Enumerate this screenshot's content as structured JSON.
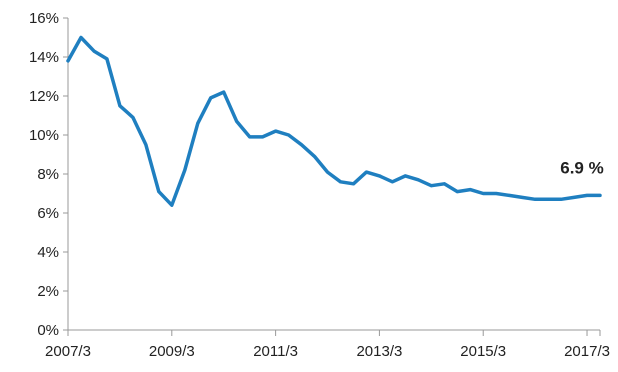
{
  "chart_data": {
    "type": "line",
    "title": "",
    "xlabel": "",
    "ylabel": "",
    "ylim": [
      0,
      16
    ],
    "y_ticks": [
      "0%",
      "2%",
      "4%",
      "6%",
      "8%",
      "10%",
      "12%",
      "14%",
      "16%"
    ],
    "x_ticks": [
      {
        "label": "2007/3",
        "x": 2007.25
      },
      {
        "label": "2009/3",
        "x": 2009.25
      },
      {
        "label": "2011/3",
        "x": 2011.25
      },
      {
        "label": "2013/3",
        "x": 2013.25
      },
      {
        "label": "2015/3",
        "x": 2015.25
      },
      {
        "label": "2017/3",
        "x": 2017.25
      }
    ],
    "xlim": [
      2007.25,
      2017.5
    ],
    "grid": false,
    "legend": "none",
    "line_color": "#1f7fc0",
    "annotation": {
      "text": "6.9 %",
      "x": 2017.5,
      "y": 6.9
    },
    "series": [
      {
        "x": [
          2007.25,
          2007.5,
          2007.75,
          2008.0,
          2008.25,
          2008.5,
          2008.75,
          2009.0,
          2009.25,
          2009.5,
          2009.75,
          2010.0,
          2010.25,
          2010.5,
          2010.75,
          2011.0,
          2011.25,
          2011.5,
          2011.75,
          2012.0,
          2012.25,
          2012.5,
          2012.75,
          2013.0,
          2013.25,
          2013.5,
          2013.75,
          2014.0,
          2014.25,
          2014.5,
          2014.75,
          2015.0,
          2015.25,
          2015.5,
          2015.75,
          2016.0,
          2016.25,
          2016.5,
          2016.75,
          2017.0,
          2017.25,
          2017.5
        ],
        "values": [
          13.8,
          15.0,
          14.3,
          13.9,
          11.5,
          10.9,
          9.5,
          7.1,
          6.4,
          8.2,
          10.6,
          11.9,
          12.2,
          10.7,
          9.9,
          9.9,
          10.2,
          10.0,
          9.5,
          8.9,
          8.1,
          7.6,
          7.5,
          8.1,
          7.9,
          7.6,
          7.9,
          7.7,
          7.4,
          7.5,
          7.1,
          7.2,
          7.0,
          7.0,
          6.9,
          6.8,
          6.7,
          6.7,
          6.7,
          6.8,
          6.9,
          6.9
        ]
      }
    ]
  }
}
